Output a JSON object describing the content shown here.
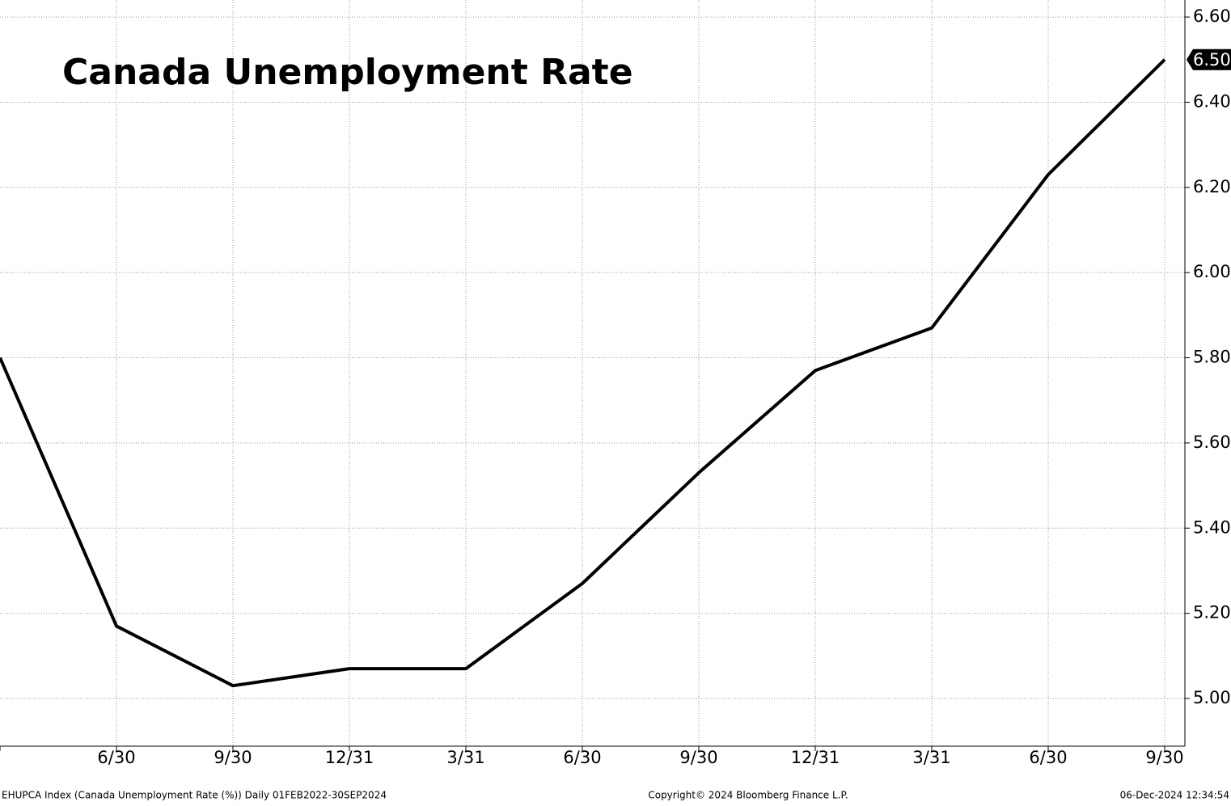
{
  "chart_data": {
    "type": "line",
    "title": "Canada Unemployment Rate",
    "categories": [
      null,
      "6/30",
      "9/30",
      "12/31",
      "3/31",
      "6/30",
      "9/30",
      "12/31",
      "3/31",
      "6/30",
      "9/30"
    ],
    "series": [
      {
        "name": "EHUPCA Index",
        "color": "#000000",
        "values": [
          5.8,
          5.17,
          5.03,
          5.07,
          5.07,
          5.27,
          5.53,
          5.77,
          5.87,
          6.23,
          6.5
        ],
        "value_labels": [
          null,
          null,
          null,
          null,
          null,
          null,
          null,
          null,
          null,
          null,
          "6.50"
        ]
      }
    ],
    "ylim": [
      4.888,
      6.64
    ],
    "yticks": [
      {
        "value": 5.0,
        "label": "5.00"
      },
      {
        "value": 5.2,
        "label": "5.20"
      },
      {
        "value": 5.4,
        "label": "5.40"
      },
      {
        "value": 5.6,
        "label": "5.60"
      },
      {
        "value": 5.8,
        "label": "5.80"
      },
      {
        "value": 6.0,
        "label": "6.00"
      },
      {
        "value": 6.2,
        "label": "6.20"
      },
      {
        "value": 6.4,
        "label": "6.40"
      },
      {
        "value": 6.6,
        "label": "6.60"
      }
    ],
    "grid": true,
    "footer": {
      "left": "EHUPCA Index (Canada Unemployment Rate (%))  Daily 01FEB2022-30SEP2024",
      "center": "Copyright© 2024 Bloomberg Finance L.P.",
      "right": "06-Dec-2024 12:34:54"
    }
  }
}
